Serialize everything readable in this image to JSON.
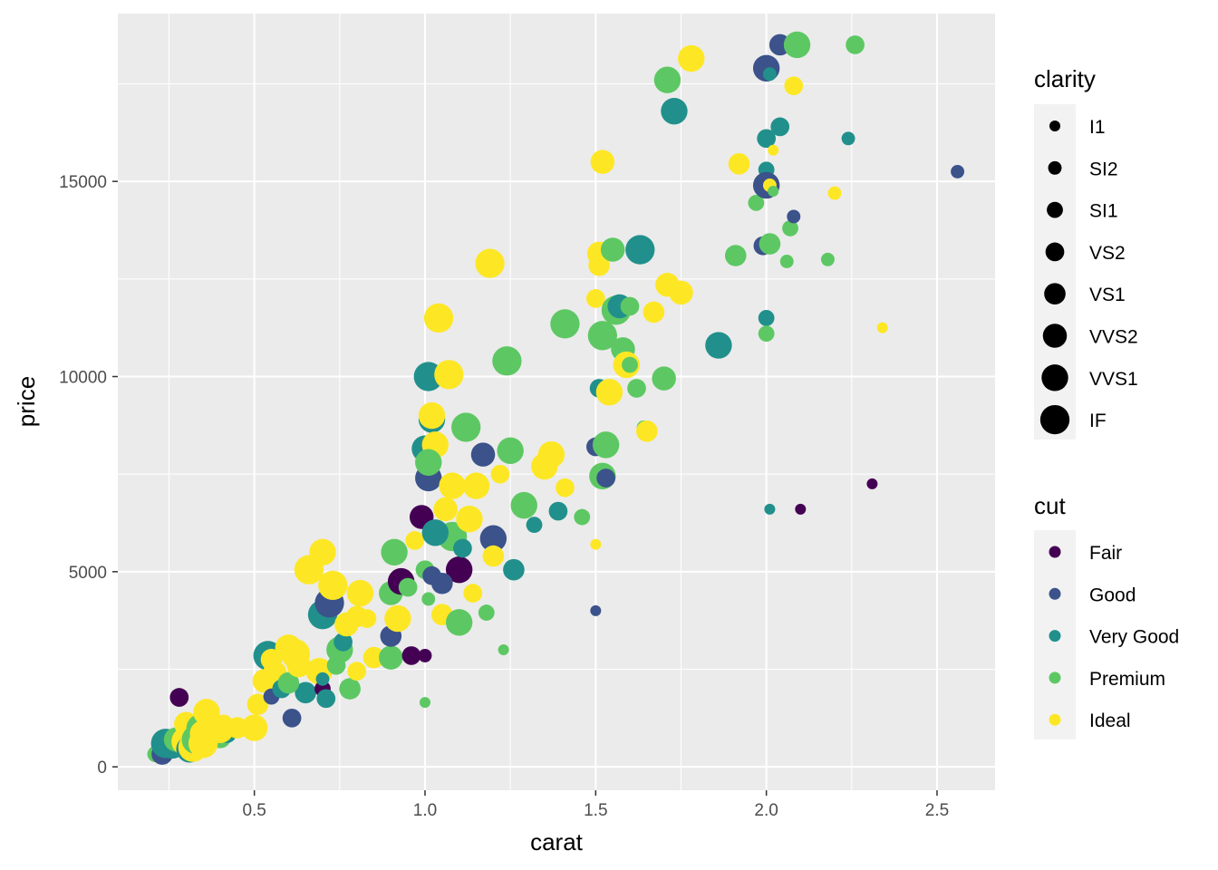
{
  "chart_data": {
    "type": "scatter",
    "title": "",
    "xlabel": "carat",
    "ylabel": "price",
    "xlim": [
      0.1,
      2.67
    ],
    "ylim": [
      -600,
      19300
    ],
    "xticks": [
      0.5,
      1.0,
      1.5,
      2.0,
      2.5
    ],
    "xtick_labels": [
      "0.5",
      "1.0",
      "1.5",
      "2.0",
      "2.5"
    ],
    "yticks": [
      0,
      5000,
      10000,
      15000
    ],
    "ytick_labels": [
      "0",
      "5000",
      "10000",
      "15000"
    ],
    "grid": true,
    "legend_placement": "right",
    "size_legend": {
      "title": "clarity",
      "items": [
        "I1",
        "SI2",
        "SI1",
        "VS2",
        "VS1",
        "VVS2",
        "VVS1",
        "IF"
      ]
    },
    "color_legend": {
      "title": "cut",
      "items": [
        "Fair",
        "Good",
        "Very Good",
        "Premium",
        "Ideal"
      ],
      "colors": [
        "#440154",
        "#3B528B",
        "#21908C",
        "#5DC863",
        "#FDE725"
      ]
    },
    "points": [
      {
        "x": 0.23,
        "y": 326,
        "cut": "Ideal",
        "clarity": "SI2"
      },
      {
        "x": 0.21,
        "y": 326,
        "cut": "Premium",
        "clarity": "SI1"
      },
      {
        "x": 0.23,
        "y": 327,
        "cut": "Good",
        "clarity": "VS1"
      },
      {
        "x": 0.26,
        "y": 550,
        "cut": "Very Good",
        "clarity": "VVS1"
      },
      {
        "x": 0.24,
        "y": 600,
        "cut": "Very Good",
        "clarity": "IF"
      },
      {
        "x": 0.27,
        "y": 700,
        "cut": "Premium",
        "clarity": "VVS2"
      },
      {
        "x": 0.28,
        "y": 1780,
        "cut": "Fair",
        "clarity": "VS2"
      },
      {
        "x": 0.3,
        "y": 650,
        "cut": "Ideal",
        "clarity": "IF"
      },
      {
        "x": 0.3,
        "y": 1100,
        "cut": "Ideal",
        "clarity": "VVS2"
      },
      {
        "x": 0.31,
        "y": 450,
        "cut": "Very Good",
        "clarity": "VVS1"
      },
      {
        "x": 0.32,
        "y": 500,
        "cut": "Ideal",
        "clarity": "IF"
      },
      {
        "x": 0.33,
        "y": 700,
        "cut": "Premium",
        "clarity": "IF"
      },
      {
        "x": 0.34,
        "y": 1000,
        "cut": "Premium",
        "clarity": "VVS1"
      },
      {
        "x": 0.35,
        "y": 850,
        "cut": "Ideal",
        "clarity": "VVS1"
      },
      {
        "x": 0.36,
        "y": 1400,
        "cut": "Ideal",
        "clarity": "VVS1"
      },
      {
        "x": 0.38,
        "y": 900,
        "cut": "Ideal",
        "clarity": "VS1"
      },
      {
        "x": 0.4,
        "y": 750,
        "cut": "Premium",
        "clarity": "VS1"
      },
      {
        "x": 0.41,
        "y": 1100,
        "cut": "Ideal",
        "clarity": "VS2"
      },
      {
        "x": 0.42,
        "y": 850,
        "cut": "Very Good",
        "clarity": "VS2"
      },
      {
        "x": 0.45,
        "y": 1000,
        "cut": "Ideal",
        "clarity": "VS1"
      },
      {
        "x": 0.5,
        "y": 1000,
        "cut": "Ideal",
        "clarity": "VVS1"
      },
      {
        "x": 0.51,
        "y": 1600,
        "cut": "Ideal",
        "clarity": "VS1"
      },
      {
        "x": 0.53,
        "y": 2200,
        "cut": "Ideal",
        "clarity": "VVS2"
      },
      {
        "x": 0.54,
        "y": 2850,
        "cut": "Very Good",
        "clarity": "IF"
      },
      {
        "x": 0.55,
        "y": 1800,
        "cut": "Good",
        "clarity": "SI1"
      },
      {
        "x": 0.56,
        "y": 2400,
        "cut": "Ideal",
        "clarity": "VVS2"
      },
      {
        "x": 0.58,
        "y": 2000,
        "cut": "Very Good",
        "clarity": "VS2"
      },
      {
        "x": 0.6,
        "y": 3050,
        "cut": "Ideal",
        "clarity": "VVS1"
      },
      {
        "x": 0.61,
        "y": 1250,
        "cut": "Good",
        "clarity": "VS2"
      },
      {
        "x": 0.62,
        "y": 2900,
        "cut": "Ideal",
        "clarity": "IF"
      },
      {
        "x": 0.65,
        "y": 1900,
        "cut": "Very Good",
        "clarity": "VS1"
      },
      {
        "x": 0.66,
        "y": 5050,
        "cut": "Ideal",
        "clarity": "IF"
      },
      {
        "x": 0.69,
        "y": 2450,
        "cut": "Ideal",
        "clarity": "VVS1"
      },
      {
        "x": 0.7,
        "y": 2000,
        "cut": "Fair",
        "clarity": "SI1"
      },
      {
        "x": 0.7,
        "y": 3900,
        "cut": "Very Good",
        "clarity": "IF"
      },
      {
        "x": 0.7,
        "y": 5500,
        "cut": "Ideal",
        "clarity": "VVS1"
      },
      {
        "x": 0.7,
        "y": 2250,
        "cut": "Very Good",
        "clarity": "SI2"
      },
      {
        "x": 0.72,
        "y": 4200,
        "cut": "Good",
        "clarity": "IF"
      },
      {
        "x": 0.73,
        "y": 4650,
        "cut": "Ideal",
        "clarity": "IF"
      },
      {
        "x": 0.75,
        "y": 3000,
        "cut": "Premium",
        "clarity": "VVS1"
      },
      {
        "x": 0.76,
        "y": 3200,
        "cut": "Very Good",
        "clarity": "VS2"
      },
      {
        "x": 0.78,
        "y": 2000,
        "cut": "Premium",
        "clarity": "VS1"
      },
      {
        "x": 0.8,
        "y": 2450,
        "cut": "Ideal",
        "clarity": "VS2"
      },
      {
        "x": 0.81,
        "y": 4450,
        "cut": "Ideal",
        "clarity": "VVS1"
      },
      {
        "x": 0.83,
        "y": 3800,
        "cut": "Ideal",
        "clarity": "VS2"
      },
      {
        "x": 0.85,
        "y": 2800,
        "cut": "Ideal",
        "clarity": "VS1"
      },
      {
        "x": 0.9,
        "y": 2800,
        "cut": "Premium",
        "clarity": "VVS2"
      },
      {
        "x": 0.9,
        "y": 3350,
        "cut": "Good",
        "clarity": "VS1"
      },
      {
        "x": 0.9,
        "y": 4450,
        "cut": "Premium",
        "clarity": "VVS2"
      },
      {
        "x": 0.91,
        "y": 5500,
        "cut": "Premium",
        "clarity": "VVS1"
      },
      {
        "x": 0.92,
        "y": 3800,
        "cut": "Ideal",
        "clarity": "VVS1"
      },
      {
        "x": 0.93,
        "y": 4750,
        "cut": "Fair",
        "clarity": "VVS1"
      },
      {
        "x": 0.96,
        "y": 2850,
        "cut": "Fair",
        "clarity": "VS2"
      },
      {
        "x": 0.99,
        "y": 6400,
        "cut": "Fair",
        "clarity": "VVS2"
      },
      {
        "x": 1.0,
        "y": 2850,
        "cut": "Fair",
        "clarity": "SI2"
      },
      {
        "x": 1.0,
        "y": 1650,
        "cut": "Premium",
        "clarity": "I1"
      },
      {
        "x": 1.0,
        "y": 5050,
        "cut": "Premium",
        "clarity": "VS2"
      },
      {
        "x": 1.0,
        "y": 8150,
        "cut": "Very Good",
        "clarity": "VVS1"
      },
      {
        "x": 1.01,
        "y": 10000,
        "cut": "Very Good",
        "clarity": "IF"
      },
      {
        "x": 1.01,
        "y": 7400,
        "cut": "Good",
        "clarity": "VVS1"
      },
      {
        "x": 1.01,
        "y": 4300,
        "cut": "Premium",
        "clarity": "SI2"
      },
      {
        "x": 1.02,
        "y": 8900,
        "cut": "Very Good",
        "clarity": "VVS1"
      },
      {
        "x": 1.02,
        "y": 4900,
        "cut": "Good",
        "clarity": "VS2"
      },
      {
        "x": 1.02,
        "y": 9000,
        "cut": "Ideal",
        "clarity": "VVS1"
      },
      {
        "x": 1.03,
        "y": 8250,
        "cut": "Ideal",
        "clarity": "VVS1"
      },
      {
        "x": 1.04,
        "y": 11500,
        "cut": "Ideal",
        "clarity": "IF"
      },
      {
        "x": 1.05,
        "y": 3900,
        "cut": "Ideal",
        "clarity": "VS1"
      },
      {
        "x": 1.06,
        "y": 6600,
        "cut": "Ideal",
        "clarity": "VVS2"
      },
      {
        "x": 1.07,
        "y": 10050,
        "cut": "Ideal",
        "clarity": "IF"
      },
      {
        "x": 1.08,
        "y": 5900,
        "cut": "Premium",
        "clarity": "IF"
      },
      {
        "x": 1.1,
        "y": 3700,
        "cut": "Premium",
        "clarity": "VVS1"
      },
      {
        "x": 1.1,
        "y": 5050,
        "cut": "Fair",
        "clarity": "VVS1"
      },
      {
        "x": 1.12,
        "y": 8700,
        "cut": "Premium",
        "clarity": "IF"
      },
      {
        "x": 1.13,
        "y": 6350,
        "cut": "Ideal",
        "clarity": "VVS1"
      },
      {
        "x": 1.15,
        "y": 7200,
        "cut": "Ideal",
        "clarity": "VVS1"
      },
      {
        "x": 1.17,
        "y": 8000,
        "cut": "Good",
        "clarity": "VVS2"
      },
      {
        "x": 1.19,
        "y": 12900,
        "cut": "Ideal",
        "clarity": "IF"
      },
      {
        "x": 1.2,
        "y": 5850,
        "cut": "Good",
        "clarity": "VVS1"
      },
      {
        "x": 1.2,
        "y": 5400,
        "cut": "Ideal",
        "clarity": "VS1"
      },
      {
        "x": 1.23,
        "y": 3000,
        "cut": "Premium",
        "clarity": "I1"
      },
      {
        "x": 1.24,
        "y": 10400,
        "cut": "Premium",
        "clarity": "IF"
      },
      {
        "x": 1.25,
        "y": 8100,
        "cut": "Premium",
        "clarity": "VVS1"
      },
      {
        "x": 1.29,
        "y": 6700,
        "cut": "Premium",
        "clarity": "VVS1"
      },
      {
        "x": 1.32,
        "y": 6200,
        "cut": "Very Good",
        "clarity": "SI1"
      },
      {
        "x": 1.35,
        "y": 7700,
        "cut": "Ideal",
        "clarity": "VVS1"
      },
      {
        "x": 1.37,
        "y": 8000,
        "cut": "Ideal",
        "clarity": "VVS1"
      },
      {
        "x": 1.39,
        "y": 6550,
        "cut": "Very Good",
        "clarity": "VS2"
      },
      {
        "x": 1.41,
        "y": 7150,
        "cut": "Ideal",
        "clarity": "VS2"
      },
      {
        "x": 1.41,
        "y": 11350,
        "cut": "Premium",
        "clarity": "IF"
      },
      {
        "x": 1.46,
        "y": 6400,
        "cut": "Premium",
        "clarity": "SI1"
      },
      {
        "x": 1.5,
        "y": 4000,
        "cut": "Good",
        "clarity": "I1"
      },
      {
        "x": 1.5,
        "y": 5700,
        "cut": "Ideal",
        "clarity": "I1"
      },
      {
        "x": 1.5,
        "y": 8200,
        "cut": "Good",
        "clarity": "VS2"
      },
      {
        "x": 1.5,
        "y": 12000,
        "cut": "Ideal",
        "clarity": "VS2"
      },
      {
        "x": 1.51,
        "y": 13150,
        "cut": "Ideal",
        "clarity": "VVS2"
      },
      {
        "x": 1.51,
        "y": 12850,
        "cut": "Ideal",
        "clarity": "VS1"
      },
      {
        "x": 1.51,
        "y": 9700,
        "cut": "Very Good",
        "clarity": "VS2"
      },
      {
        "x": 1.52,
        "y": 15500,
        "cut": "Ideal",
        "clarity": "VVS2"
      },
      {
        "x": 1.52,
        "y": 7450,
        "cut": "Premium",
        "clarity": "VVS1"
      },
      {
        "x": 1.52,
        "y": 11050,
        "cut": "Premium",
        "clarity": "IF"
      },
      {
        "x": 1.53,
        "y": 8250,
        "cut": "Premium",
        "clarity": "VVS1"
      },
      {
        "x": 1.53,
        "y": 7400,
        "cut": "Good",
        "clarity": "VS2"
      },
      {
        "x": 1.54,
        "y": 9600,
        "cut": "Ideal",
        "clarity": "VVS1"
      },
      {
        "x": 1.55,
        "y": 13250,
        "cut": "Premium",
        "clarity": "VVS2"
      },
      {
        "x": 1.56,
        "y": 11700,
        "cut": "Premium",
        "clarity": "IF"
      },
      {
        "x": 1.57,
        "y": 11800,
        "cut": "Very Good",
        "clarity": "VVS2"
      },
      {
        "x": 1.58,
        "y": 10700,
        "cut": "Premium",
        "clarity": "VVS2"
      },
      {
        "x": 1.59,
        "y": 10300,
        "cut": "Ideal",
        "clarity": "VVS1"
      },
      {
        "x": 1.6,
        "y": 10300,
        "cut": "Premium",
        "clarity": "SI1"
      },
      {
        "x": 1.6,
        "y": 11800,
        "cut": "Premium",
        "clarity": "VS2"
      },
      {
        "x": 1.62,
        "y": 9700,
        "cut": "Premium",
        "clarity": "VS2"
      },
      {
        "x": 1.63,
        "y": 13250,
        "cut": "Very Good",
        "clarity": "IF"
      },
      {
        "x": 1.64,
        "y": 8700,
        "cut": "Premium",
        "clarity": "SI2"
      },
      {
        "x": 1.65,
        "y": 8600,
        "cut": "Ideal",
        "clarity": "VS1"
      },
      {
        "x": 1.67,
        "y": 11650,
        "cut": "Ideal",
        "clarity": "VS1"
      },
      {
        "x": 1.7,
        "y": 9950,
        "cut": "Premium",
        "clarity": "VVS2"
      },
      {
        "x": 1.71,
        "y": 12350,
        "cut": "Ideal",
        "clarity": "VVS2"
      },
      {
        "x": 1.71,
        "y": 17600,
        "cut": "Premium",
        "clarity": "VVS1"
      },
      {
        "x": 1.73,
        "y": 16800,
        "cut": "Very Good",
        "clarity": "VVS1"
      },
      {
        "x": 1.75,
        "y": 12150,
        "cut": "Ideal",
        "clarity": "VVS2"
      },
      {
        "x": 1.78,
        "y": 18150,
        "cut": "Ideal",
        "clarity": "VVS1"
      },
      {
        "x": 1.86,
        "y": 10800,
        "cut": "Very Good",
        "clarity": "VVS1"
      },
      {
        "x": 1.91,
        "y": 13100,
        "cut": "Premium",
        "clarity": "VS1"
      },
      {
        "x": 1.92,
        "y": 15450,
        "cut": "Ideal",
        "clarity": "VS1"
      },
      {
        "x": 1.97,
        "y": 14450,
        "cut": "Premium",
        "clarity": "SI1"
      },
      {
        "x": 1.99,
        "y": 13350,
        "cut": "Good",
        "clarity": "VS2"
      },
      {
        "x": 2.0,
        "y": 17900,
        "cut": "Good",
        "clarity": "VVS1"
      },
      {
        "x": 2.0,
        "y": 16100,
        "cut": "Very Good",
        "clarity": "VS2"
      },
      {
        "x": 2.0,
        "y": 15300,
        "cut": "Very Good",
        "clarity": "SI1"
      },
      {
        "x": 2.0,
        "y": 14900,
        "cut": "Good",
        "clarity": "VVS1"
      },
      {
        "x": 2.0,
        "y": 11500,
        "cut": "Very Good",
        "clarity": "SI1"
      },
      {
        "x": 2.0,
        "y": 11100,
        "cut": "Premium",
        "clarity": "SI1"
      },
      {
        "x": 2.01,
        "y": 6600,
        "cut": "Very Good",
        "clarity": "I1"
      },
      {
        "x": 2.01,
        "y": 17750,
        "cut": "Very Good",
        "clarity": "SI2"
      },
      {
        "x": 2.01,
        "y": 14900,
        "cut": "Ideal",
        "clarity": "SI2"
      },
      {
        "x": 2.01,
        "y": 13400,
        "cut": "Premium",
        "clarity": "VS1"
      },
      {
        "x": 2.02,
        "y": 15800,
        "cut": "Ideal",
        "clarity": "I1"
      },
      {
        "x": 2.02,
        "y": 14750,
        "cut": "Premium",
        "clarity": "I1"
      },
      {
        "x": 2.04,
        "y": 18500,
        "cut": "Good",
        "clarity": "VS1"
      },
      {
        "x": 2.04,
        "y": 16400,
        "cut": "Very Good",
        "clarity": "VS2"
      },
      {
        "x": 2.06,
        "y": 12950,
        "cut": "Premium",
        "clarity": "SI2"
      },
      {
        "x": 2.07,
        "y": 13800,
        "cut": "Premium",
        "clarity": "SI1"
      },
      {
        "x": 2.08,
        "y": 14100,
        "cut": "Good",
        "clarity": "SI2"
      },
      {
        "x": 2.08,
        "y": 17450,
        "cut": "Ideal",
        "clarity": "VS2"
      },
      {
        "x": 2.09,
        "y": 18500,
        "cut": "Premium",
        "clarity": "VVS1"
      },
      {
        "x": 2.1,
        "y": 6600,
        "cut": "Fair",
        "clarity": "I1"
      },
      {
        "x": 2.18,
        "y": 13000,
        "cut": "Premium",
        "clarity": "SI2"
      },
      {
        "x": 2.2,
        "y": 14700,
        "cut": "Ideal",
        "clarity": "SI2"
      },
      {
        "x": 2.24,
        "y": 16100,
        "cut": "Very Good",
        "clarity": "SI2"
      },
      {
        "x": 2.26,
        "y": 18500,
        "cut": "Premium",
        "clarity": "VS2"
      },
      {
        "x": 2.31,
        "y": 7250,
        "cut": "Fair",
        "clarity": "I1"
      },
      {
        "x": 2.34,
        "y": 11250,
        "cut": "Ideal",
        "clarity": "I1"
      },
      {
        "x": 2.56,
        "y": 15250,
        "cut": "Good",
        "clarity": "SI2"
      },
      {
        "x": 0.35,
        "y": 600,
        "cut": "Ideal",
        "clarity": "IF"
      },
      {
        "x": 0.4,
        "y": 950,
        "cut": "Ideal",
        "clarity": "VVS1"
      },
      {
        "x": 0.55,
        "y": 2750,
        "cut": "Ideal",
        "clarity": "VS1"
      },
      {
        "x": 0.6,
        "y": 2150,
        "cut": "Premium",
        "clarity": "VS1"
      },
      {
        "x": 0.63,
        "y": 2600,
        "cut": "Ideal",
        "clarity": "VVS2"
      },
      {
        "x": 0.71,
        "y": 1750,
        "cut": "Very Good",
        "clarity": "VS2"
      },
      {
        "x": 0.74,
        "y": 2600,
        "cut": "Premium",
        "clarity": "VS2"
      },
      {
        "x": 0.77,
        "y": 3650,
        "cut": "Ideal",
        "clarity": "VVS2"
      },
      {
        "x": 0.8,
        "y": 3850,
        "cut": "Ideal",
        "clarity": "VS1"
      },
      {
        "x": 0.95,
        "y": 4600,
        "cut": "Premium",
        "clarity": "VS2"
      },
      {
        "x": 0.97,
        "y": 5800,
        "cut": "Ideal",
        "clarity": "VS2"
      },
      {
        "x": 1.01,
        "y": 7800,
        "cut": "Premium",
        "clarity": "VVS1"
      },
      {
        "x": 1.03,
        "y": 6000,
        "cut": "Very Good",
        "clarity": "VVS1"
      },
      {
        "x": 1.05,
        "y": 4700,
        "cut": "Good",
        "clarity": "VS1"
      },
      {
        "x": 1.08,
        "y": 7200,
        "cut": "Ideal",
        "clarity": "VVS1"
      },
      {
        "x": 1.11,
        "y": 5600,
        "cut": "Very Good",
        "clarity": "VS2"
      },
      {
        "x": 1.14,
        "y": 4450,
        "cut": "Ideal",
        "clarity": "VS2"
      },
      {
        "x": 1.18,
        "y": 3950,
        "cut": "Premium",
        "clarity": "SI1"
      },
      {
        "x": 1.22,
        "y": 7500,
        "cut": "Ideal",
        "clarity": "VS2"
      },
      {
        "x": 1.26,
        "y": 5050,
        "cut": "Very Good",
        "clarity": "VS1"
      }
    ]
  }
}
